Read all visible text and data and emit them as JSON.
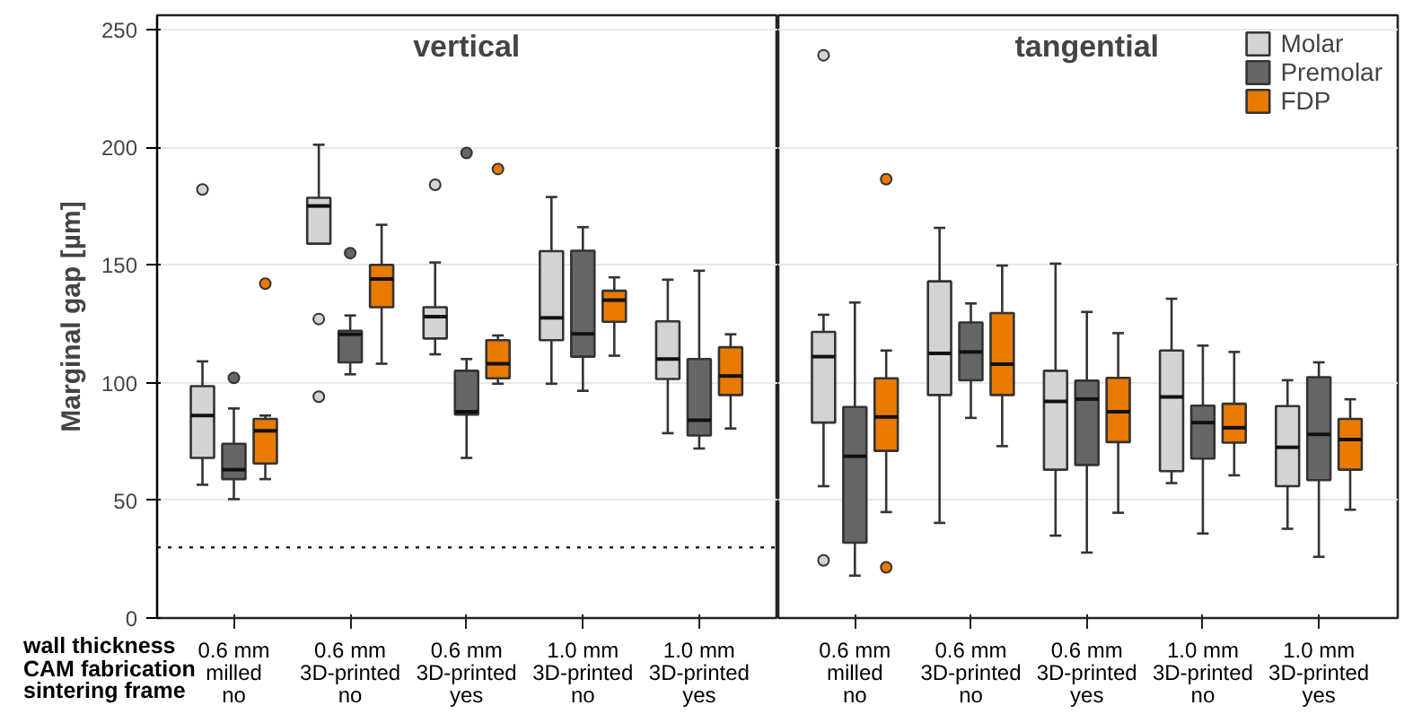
{
  "chart_data": [
    {
      "type": "box",
      "title": "vertical",
      "ylabel": "Marginal gap [µm]",
      "categories": [
        "0.6 mm\nmilled\nno",
        "0.6 mm\n3D-printed\nno",
        "0.6 mm\n3D-printed\nyes",
        "1.0 mm\n3D-printed\nno",
        "1.0 mm\n3D-printed\nyes"
      ],
      "annotations": [
        "wall thickness",
        "CAM fabrication",
        "sintering frame"
      ],
      "ylim": [
        0,
        256
      ],
      "yticks": [
        0,
        50,
        100,
        150,
        200,
        250
      ],
      "grid": "y",
      "legend": false,
      "ref_lines": [
        {
          "axis": "y",
          "value": 30,
          "label": null,
          "line_style": "dotted"
        }
      ],
      "series": [
        {
          "color": "#d3d3d3",
          "boxes": [
            {
              "low": 56.6,
              "q1": 68,
              "median": 86,
              "q3": 98.5,
              "high": 109,
              "outliers": [
                182
              ]
            },
            {
              "low": 159,
              "q1": 159,
              "median": 175,
              "q3": 178.5,
              "high": 201,
              "outliers": [
                127,
                94
              ]
            },
            {
              "low": 112,
              "q1": 118.7,
              "median": 128,
              "q3": 132,
              "high": 151,
              "outliers": [
                184
              ]
            },
            {
              "low": 99.5,
              "q1": 118,
              "median": 127.5,
              "q3": 155.8,
              "high": 178.8
            },
            {
              "low": 78.5,
              "q1": 101.5,
              "median": 110,
              "q3": 126,
              "high": 143.7
            }
          ]
        },
        {
          "color": "#666666",
          "boxes": [
            {
              "low": 50.5,
              "q1": 59,
              "median": 63,
              "q3": 74,
              "high": 89,
              "outliers": [
                102
              ]
            },
            {
              "low": 103.5,
              "q1": 108.6,
              "median": 120.5,
              "q3": 122,
              "high": 128.5,
              "outliers": [
                155
              ]
            },
            {
              "low": 68,
              "q1": 86.4,
              "median": 87.6,
              "q3": 105,
              "high": 110,
              "outliers": [
                197.5
              ]
            },
            {
              "low": 96.5,
              "q1": 111,
              "median": 120.7,
              "q3": 156,
              "high": 166
            },
            {
              "low": 72,
              "q1": 77.5,
              "median": 84,
              "q3": 110,
              "high": 147.5
            }
          ]
        },
        {
          "color": "#e87a00",
          "boxes": [
            {
              "low": 59,
              "q1": 65.6,
              "median": 79.5,
              "q3": 84.6,
              "high": 86,
              "outliers": [
                142
              ]
            },
            {
              "low": 108,
              "q1": 132,
              "median": 144,
              "q3": 150,
              "high": 167
            },
            {
              "low": 99.5,
              "q1": 101.8,
              "median": 108,
              "q3": 118,
              "high": 120,
              "outliers": [
                190.7
              ]
            },
            {
              "low": 111.4,
              "q1": 125.8,
              "median": 135,
              "q3": 139,
              "high": 144.7
            },
            {
              "low": 80.5,
              "q1": 94.7,
              "median": 102.8,
              "q3": 115,
              "high": 120.5
            }
          ]
        }
      ]
    },
    {
      "type": "box",
      "title": "tangential",
      "categories": [
        "0.6 mm\nmilled\nno",
        "0.6 mm\n3D-printed\nno",
        "0.6 mm\n3D-printed\nyes",
        "1.0 mm\n3D-printed\nno",
        "1.0 mm\n3D-printed\nyes"
      ],
      "ylim": [
        0,
        256
      ],
      "yticks": [
        0,
        50,
        100,
        150,
        200,
        250
      ],
      "tick_labels": "x",
      "grid": "y",
      "legend": "top right",
      "series": [
        {
          "name": "Molar",
          "color": "#d3d3d3",
          "boxes": [
            {
              "low": 56,
              "q1": 83,
              "median": 111,
              "q3": 121.5,
              "high": 128.8,
              "outliers": [
                24.5,
                239
              ]
            },
            {
              "low": 40.4,
              "q1": 94.7,
              "median": 112.4,
              "q3": 143,
              "high": 165.7
            },
            {
              "low": 35,
              "q1": 63,
              "median": 92,
              "q3": 105,
              "high": 150.5
            },
            {
              "low": 57.3,
              "q1": 62.4,
              "median": 93.9,
              "q3": 113.6,
              "high": 135.6
            },
            {
              "low": 37.9,
              "q1": 56,
              "median": 72.5,
              "q3": 90,
              "high": 101
            }
          ]
        },
        {
          "name": "Premolar",
          "color": "#666666",
          "boxes": [
            {
              "low": 18,
              "q1": 32,
              "median": 68.7,
              "q3": 89.6,
              "high": 134
            },
            {
              "low": 85,
              "q1": 101,
              "median": 113,
              "q3": 125.5,
              "high": 133.6
            },
            {
              "low": 27.8,
              "q1": 65,
              "median": 93,
              "q3": 100.8,
              "high": 130
            },
            {
              "low": 35.9,
              "q1": 67.7,
              "median": 83,
              "q3": 90.2,
              "high": 115.7
            },
            {
              "low": 26,
              "q1": 58.6,
              "median": 78,
              "q3": 102.3,
              "high": 108.6
            }
          ]
        },
        {
          "name": "FDP",
          "color": "#e87a00",
          "boxes": [
            {
              "low": 45,
              "q1": 71,
              "median": 85.4,
              "q3": 101.8,
              "high": 113.6,
              "outliers": [
                186.4,
                21.5
              ]
            },
            {
              "low": 73,
              "q1": 94.7,
              "median": 107.8,
              "q3": 129.5,
              "high": 149.7
            },
            {
              "low": 44.7,
              "q1": 74.7,
              "median": 87.6,
              "q3": 102,
              "high": 121
            },
            {
              "low": 60.6,
              "q1": 74.5,
              "median": 80.8,
              "q3": 91,
              "high": 113
            },
            {
              "low": 46,
              "q1": 63,
              "median": 75.8,
              "q3": 84.6,
              "high": 92.9
            }
          ]
        }
      ]
    }
  ]
}
